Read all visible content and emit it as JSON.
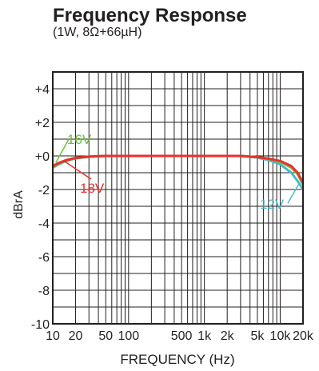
{
  "chart_data": {
    "type": "line",
    "title": "Frequency Response",
    "subtitle": "(1W, 8Ω+66µH)",
    "xlabel": "FREQUENCY (Hz)",
    "ylabel": "dBrA",
    "xscale": "log",
    "xlim": [
      10,
      20000
    ],
    "ylim": [
      -10,
      5
    ],
    "grid": true,
    "x_ticks": [
      10,
      20,
      50,
      100,
      500,
      1000,
      2000,
      5000,
      10000,
      20000
    ],
    "x_tick_labels": [
      "10",
      "20",
      "50",
      "100",
      "500",
      "1k",
      "2k",
      "5k",
      "10k",
      "20k"
    ],
    "y_ticks": [
      4,
      2,
      0,
      -2,
      -4,
      -6,
      -8,
      -10
    ],
    "y_tick_labels": [
      "+4",
      "+2",
      "+0",
      "-2",
      "-4",
      "-6",
      "-8",
      "-10"
    ],
    "series": [
      {
        "name": "12V",
        "color": "#4bb8c8",
        "points": [
          [
            10,
            -0.7
          ],
          [
            12,
            -0.5
          ],
          [
            15,
            -0.3
          ],
          [
            20,
            -0.15
          ],
          [
            30,
            -0.05
          ],
          [
            50,
            0
          ],
          [
            100,
            0
          ],
          [
            1000,
            0
          ],
          [
            3000,
            0
          ],
          [
            5000,
            -0.1
          ],
          [
            7000,
            -0.25
          ],
          [
            10000,
            -0.5
          ],
          [
            14000,
            -1.0
          ],
          [
            17000,
            -1.5
          ],
          [
            20000,
            -2.0
          ]
        ]
      },
      {
        "name": "16V",
        "color": "#6cbf3f",
        "points": [
          [
            10,
            -0.65
          ],
          [
            12,
            -0.45
          ],
          [
            15,
            -0.28
          ],
          [
            20,
            -0.13
          ],
          [
            30,
            -0.04
          ],
          [
            50,
            0
          ],
          [
            100,
            0
          ],
          [
            1000,
            0
          ],
          [
            3000,
            0
          ],
          [
            5000,
            -0.08
          ],
          [
            7000,
            -0.18
          ],
          [
            10000,
            -0.35
          ],
          [
            14000,
            -0.7
          ],
          [
            17000,
            -1.1
          ],
          [
            20000,
            -1.7
          ]
        ]
      },
      {
        "name": "18V",
        "color": "#e8312a",
        "points": [
          [
            10,
            -0.6
          ],
          [
            12,
            -0.42
          ],
          [
            15,
            -0.25
          ],
          [
            20,
            -0.12
          ],
          [
            30,
            -0.04
          ],
          [
            50,
            0
          ],
          [
            100,
            0
          ],
          [
            1000,
            0
          ],
          [
            3000,
            0
          ],
          [
            5000,
            -0.07
          ],
          [
            7000,
            -0.16
          ],
          [
            10000,
            -0.3
          ],
          [
            14000,
            -0.6
          ],
          [
            17000,
            -1.0
          ],
          [
            20000,
            -1.6
          ]
        ]
      }
    ],
    "annotations": [
      {
        "text": "16V",
        "color": "#6cbf3f",
        "target": [
          11,
          -0.4
        ]
      },
      {
        "text": "18V",
        "color": "#e8312a",
        "target": [
          14,
          -0.3
        ]
      },
      {
        "text": "12V",
        "color": "#4bb8c8",
        "target": [
          18000,
          -1.6
        ]
      }
    ]
  }
}
